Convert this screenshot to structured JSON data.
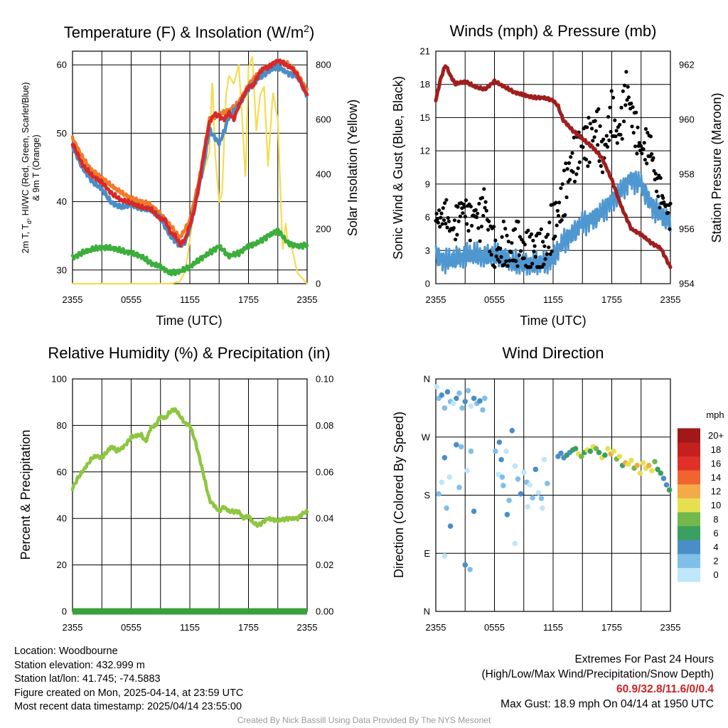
{
  "colors": {
    "temp_red": "#d7282a",
    "dew_green": "#3cae3c",
    "hiwc_scarlet": "#e03020",
    "wc_blue": "#4a8ec8",
    "t9m_orange": "#f07a28",
    "solar_yellow": "#f5dc50",
    "wind_blue": "#4f97d0",
    "gust_black": "#000000",
    "pressure_maroon": "#a01e1e",
    "rh_green": "#8dc63f",
    "precip_green": "#3aa03a"
  },
  "footer": {
    "location": "Location: Woodbourne",
    "elevation": "Station elevation: 432.999 m",
    "latlon": "Station lat/lon: 41.745; -74.5883",
    "created": "Figure created on Mon, 2025-04-14, at 23:59 UTC",
    "recent": "Most recent data timestamp: 2025/04/14 23:55:00",
    "extremes_title": "Extremes For Past 24 Hours",
    "extremes_sub": "(High/Low/Max Wind/Precipitation/Snow Depth)",
    "extremes_vals": "60.9/32.8/11.6/0/0.4",
    "max_gust": "Max Gust: 18.9 mph On 04/14 at 1950 UTC",
    "credit": "Created By Nick Bassill Using Data Provided By The NYS Mesonet"
  },
  "chart_data": [
    {
      "type": "line",
      "title": "Temperature (F) & Insolation (W/m²)",
      "xlabel": "Time (UTC)",
      "ylabel_lines": [
        "2m T, Td, HI/WC (Red, Green, Scarlet/Blue)",
        "& 9m T (Orange)"
      ],
      "y2label": "Solar Insolation (Yellow)",
      "xticks": [
        "2355",
        "0555",
        "1155",
        "1755",
        "2355"
      ],
      "xlim": [
        0,
        24
      ],
      "ylim": [
        28,
        62
      ],
      "yticks": [
        30,
        40,
        50,
        60
      ],
      "y2lim": [
        0,
        850
      ],
      "y2ticks": [
        0,
        200,
        400,
        600,
        800
      ],
      "series": [
        {
          "name": "2m T",
          "color": "#d7282a",
          "x": [
            0,
            1,
            2,
            3,
            4,
            5,
            6,
            7,
            8,
            9,
            9.5,
            10,
            10.5,
            11,
            11.5,
            12,
            12.5,
            13,
            13.5,
            14,
            14.5,
            15,
            15.5,
            16,
            16.5,
            17,
            17.5,
            18,
            18.5,
            19,
            19.5,
            20,
            20.5,
            21,
            21.5,
            22,
            22.5,
            23,
            23.5,
            24
          ],
          "values": [
            48.5,
            45.5,
            43.8,
            42.8,
            41.2,
            40.2,
            39.8,
            39.2,
            38.9,
            37.5,
            37.3,
            35.5,
            35.0,
            33.7,
            34.4,
            36.5,
            39.0,
            43.0,
            47.5,
            51.5,
            52.8,
            52.5,
            52.0,
            53.0,
            52.0,
            54.0,
            55.5,
            56.8,
            57.0,
            58.5,
            59.5,
            59.6,
            60.2,
            60.6,
            60.4,
            59.8,
            59.5,
            58.5,
            57.0,
            55.5
          ]
        },
        {
          "name": "9m T",
          "color": "#f07a28",
          "x": [
            0,
            1,
            2,
            3,
            4,
            5,
            6,
            7,
            8,
            9,
            10,
            11,
            12,
            13,
            14,
            15,
            16,
            17,
            18,
            19,
            20,
            21,
            22,
            23,
            24
          ],
          "values": [
            49.3,
            46.5,
            44.5,
            43.5,
            42.3,
            41.3,
            40.5,
            40.0,
            39.5,
            38.2,
            36.5,
            34.7,
            37.2,
            43.5,
            52.0,
            52.8,
            53.3,
            54.5,
            57.0,
            58.8,
            59.8,
            60.5,
            60.2,
            58.8,
            56.2
          ]
        },
        {
          "name": "WC",
          "color": "#4a8ec8",
          "x": [
            0,
            1,
            2,
            3,
            4,
            5,
            6,
            7,
            8,
            9,
            10,
            11,
            11.5,
            12,
            13,
            13.5,
            14,
            15,
            15.5,
            16,
            17,
            18,
            19,
            20,
            21,
            22,
            23,
            23.5,
            24
          ],
          "values": [
            48.0,
            45.0,
            43.0,
            41.8,
            39.8,
            39.2,
            39.5,
            39.0,
            38.8,
            37.5,
            35.0,
            33.5,
            34.0,
            36.0,
            42.5,
            46.0,
            50.5,
            48.5,
            50.2,
            52.5,
            54.0,
            56.5,
            58.0,
            59.0,
            59.8,
            58.8,
            58.3,
            57.0,
            55.5
          ]
        },
        {
          "name": "Td",
          "color": "#3cae3c",
          "x": [
            0,
            1,
            2,
            3,
            4,
            5,
            6,
            7,
            8,
            9,
            10,
            11,
            12,
            13,
            14,
            15,
            16,
            17,
            18,
            19,
            20,
            21,
            22,
            23,
            24
          ],
          "values": [
            31.8,
            32.5,
            33.0,
            33.3,
            33.2,
            32.8,
            32.5,
            32.0,
            31.0,
            30.5,
            29.5,
            29.8,
            30.5,
            31.5,
            32.5,
            33.5,
            32.0,
            32.5,
            33.5,
            34.0,
            35.0,
            35.8,
            34.0,
            33.5,
            33.7
          ]
        },
        {
          "name": "Solar",
          "color": "#f5dc50",
          "axis": "y2",
          "x": [
            0,
            8,
            10,
            11,
            11.3,
            11.6,
            12,
            12.5,
            13,
            13.5,
            14,
            14.3,
            14.6,
            15,
            15.3,
            15.7,
            16,
            16.5,
            17,
            17.3,
            17.7,
            18,
            18.4,
            18.8,
            19.2,
            19.6,
            20,
            20.5,
            21,
            21.5,
            21.8,
            22,
            22.5,
            23,
            24
          ],
          "values": [
            0,
            0,
            0,
            8,
            30,
            60,
            160,
            280,
            360,
            420,
            480,
            750,
            470,
            300,
            330,
            690,
            760,
            730,
            800,
            640,
            380,
            790,
            830,
            560,
            690,
            720,
            430,
            700,
            600,
            120,
            220,
            160,
            120,
            40,
            0
          ]
        }
      ]
    },
    {
      "type": "line",
      "title": "Winds (mph) & Pressure (mb)",
      "xlabel": "Time (UTC)",
      "ylabel": "Sonic Wind & Gust (Blue, Black)",
      "y2label": "Station Pressure (Maroon)",
      "xticks": [
        "2355",
        "0555",
        "1155",
        "1755",
        "2355"
      ],
      "xlim": [
        0,
        24
      ],
      "ylim": [
        0,
        21
      ],
      "yticks": [
        0,
        3,
        6,
        9,
        12,
        15,
        18,
        21
      ],
      "y2lim": [
        954,
        962.5
      ],
      "y2ticks": [
        954,
        956,
        958,
        960,
        962
      ],
      "series": [
        {
          "name": "Sonic Wind",
          "color": "#4f97d0",
          "x": [
            0,
            1,
            2,
            3,
            4,
            5,
            6,
            7,
            8,
            9,
            10,
            11,
            12,
            13,
            14,
            15,
            16,
            17,
            18,
            19,
            20,
            21,
            22,
            23,
            24
          ],
          "values": [
            2.5,
            2.0,
            2.2,
            2.5,
            2.6,
            2.4,
            2.6,
            2.3,
            1.8,
            1.8,
            1.7,
            1.9,
            2.2,
            3.8,
            4.5,
            5.5,
            5.8,
            6.5,
            7.5,
            8.5,
            9.5,
            9.0,
            7.2,
            6.2,
            5.5
          ]
        },
        {
          "name": "Gust",
          "color": "#000000",
          "marker": "dot",
          "x": [
            0,
            0.5,
            1,
            1.5,
            2,
            2.5,
            3,
            3.5,
            4,
            4.5,
            5,
            5.5,
            6,
            6.5,
            7,
            7.5,
            8,
            8.5,
            9,
            9.5,
            10,
            10.5,
            11,
            11.5,
            12,
            12.5,
            13,
            13.5,
            14,
            14.5,
            15,
            15.5,
            16,
            16.5,
            17,
            17.5,
            18,
            18.5,
            19,
            19.5,
            20,
            20.5,
            21,
            21.5,
            22,
            22.5,
            23,
            23.5,
            24
          ],
          "values": [
            6.0,
            5.8,
            6.6,
            4.8,
            5.2,
            6.8,
            6.8,
            5.5,
            6.5,
            5.6,
            7.8,
            4.2,
            3.1,
            2.5,
            3.7,
            2.6,
            3.5,
            3.8,
            2.9,
            2.7,
            3.2,
            3.0,
            2.4,
            3.9,
            5.5,
            6.3,
            7.6,
            9.7,
            11.2,
            11.8,
            13.0,
            12.5,
            13.5,
            14.6,
            11.3,
            13.0,
            15.7,
            13.2,
            14.5,
            18.0,
            15.5,
            13.6,
            12.0,
            12.4,
            12.5,
            9.2,
            8.2,
            7.0,
            6.0
          ]
        },
        {
          "name": "Pressure",
          "color": "#a01e1e",
          "axis": "y2",
          "x": [
            0,
            0.5,
            1,
            1.5,
            2,
            3,
            4,
            5,
            6,
            7,
            8,
            9,
            10,
            11,
            12,
            12.5,
            13,
            14,
            15,
            16,
            17,
            18,
            19,
            20,
            21,
            22,
            23,
            24
          ],
          "values": [
            960.7,
            961.5,
            962.0,
            961.6,
            961.3,
            961.4,
            961.2,
            961.1,
            961.4,
            961.2,
            961.0,
            960.9,
            960.8,
            960.8,
            960.7,
            960.5,
            960.0,
            959.6,
            959.3,
            959.0,
            958.6,
            957.8,
            956.8,
            956.0,
            955.8,
            955.5,
            955.3,
            954.6
          ]
        }
      ]
    },
    {
      "type": "line",
      "title": "Relative Humidity (%) & Precipitation (in)",
      "ylabel": "Percent & Precipitation",
      "xticks": [
        "2355",
        "0555",
        "1155",
        "1755",
        "2355"
      ],
      "xlim": [
        0,
        24
      ],
      "ylim": [
        0,
        100
      ],
      "yticks": [
        0,
        20,
        40,
        60,
        80,
        100
      ],
      "y2lim": [
        0,
        0.1
      ],
      "y2ticks": [
        "0.00",
        "0.02",
        "0.04",
        "0.06",
        "0.08",
        "0.10"
      ],
      "series": [
        {
          "name": "RH",
          "color": "#8dc63f",
          "x": [
            0,
            0.5,
            1,
            1.5,
            2,
            2.5,
            3,
            4,
            4.5,
            5,
            5.5,
            6,
            7,
            7.5,
            8,
            8.5,
            9,
            9.5,
            10,
            10.5,
            11,
            11.5,
            12,
            12.5,
            13,
            13.5,
            14,
            15,
            15.5,
            16,
            17,
            17.5,
            18,
            18.5,
            19,
            20,
            21,
            22,
            23,
            23.5,
            24
          ],
          "values": [
            53,
            57,
            60,
            63,
            66,
            67,
            66,
            71,
            69,
            70,
            72,
            75,
            76,
            73,
            79,
            80,
            84,
            83,
            86,
            87,
            84,
            81,
            80,
            74,
            66,
            57,
            48,
            43,
            45,
            43,
            43,
            40,
            41,
            38,
            37,
            40,
            39,
            40,
            40,
            42,
            43
          ]
        },
        {
          "name": "Precipitation",
          "color": "#3aa03a",
          "axis": "y2",
          "x": [
            0,
            24
          ],
          "values": [
            0,
            0
          ]
        }
      ]
    },
    {
      "type": "scatter",
      "title": "Wind Direction",
      "ylabel": "Direction (Colored By Speed)",
      "xticks": [
        "2355",
        "0555",
        "1155",
        "1755",
        "2355"
      ],
      "yticks": [
        "N",
        "E",
        "S",
        "W",
        "N"
      ],
      "xlim": [
        0,
        24
      ],
      "ylim": [
        0,
        360
      ],
      "legend_title": "mph",
      "legend_labels": [
        "0",
        "2",
        "4",
        "6",
        "8",
        "10",
        "12",
        "14",
        "16",
        "18",
        "20+"
      ],
      "legend_colors": [
        "#bfe6fa",
        "#80bfe8",
        "#4a8ec8",
        "#3aa060",
        "#72b84a",
        "#e6e050",
        "#f5aa48",
        "#f06430",
        "#e03028",
        "#c4201e",
        "#a01818"
      ],
      "points": {
        "x": [
          0.1,
          0.3,
          0.6,
          0.9,
          1.2,
          1.5,
          1.8,
          2.1,
          2.4,
          2.7,
          3.0,
          3.3,
          3.6,
          3.9,
          4.2,
          4.5,
          4.8,
          5.0,
          0.3,
          0.6,
          0.9,
          1.1,
          1.4,
          2.1,
          2.6,
          3.2,
          3.6,
          3.9,
          0.9,
          1.5,
          2.4,
          3.0,
          3.5,
          6.1,
          6.4,
          6.7,
          6.9,
          7.2,
          7.5,
          7.8,
          8.1,
          8.4,
          8.7,
          9.0,
          9.3,
          9.6,
          9.9,
          10.2,
          10.5,
          10.8,
          11.1,
          11.4,
          6.5,
          6.8,
          7.3,
          8.1,
          9.4,
          10.9,
          12.5,
          12.8,
          13.1,
          13.4,
          13.7,
          14.0,
          14.3,
          14.6,
          14.9,
          15.2,
          15.5,
          15.8,
          16.1,
          16.4,
          16.7,
          17.0,
          17.3,
          17.6,
          17.9,
          18.2,
          18.5,
          18.8,
          19.1,
          19.4,
          19.7,
          20.0,
          20.3,
          20.6,
          20.9,
          21.2,
          21.5,
          21.8,
          22.1,
          22.4,
          22.7,
          23.0,
          23.3,
          23.6,
          23.9
        ],
        "y": [
          348,
          330,
          335,
          315,
          340,
          325,
          322,
          330,
          338,
          315,
          325,
          342,
          318,
          330,
          322,
          326,
          312,
          330,
          182,
          200,
          238,
          160,
          208,
          258,
          255,
          218,
          248,
          155,
          86,
          132,
          192,
          72,
          65,
          248,
          212,
          235,
          195,
          248,
          172,
          280,
          225,
          205,
          182,
          215,
          200,
          196,
          176,
          220,
          184,
          175,
          235,
          198,
          262,
          208,
          150,
          105,
          162,
          160,
          240,
          245,
          238,
          242,
          246,
          250,
          252,
          244,
          240,
          246,
          250,
          248,
          255,
          252,
          246,
          238,
          242,
          252,
          244,
          248,
          236,
          240,
          226,
          230,
          228,
          234,
          222,
          226,
          214,
          230,
          222,
          226,
          218,
          232,
          220,
          214,
          206,
          196,
          188
        ],
        "speed": [
          1,
          2,
          3,
          2,
          3,
          2,
          1,
          3,
          2,
          2,
          3,
          2,
          1,
          3,
          2,
          3,
          2,
          2,
          2,
          1,
          3,
          2,
          1,
          3,
          2,
          1,
          2,
          3,
          1,
          3,
          2,
          3,
          2,
          2,
          1,
          3,
          2,
          1,
          2,
          3,
          1,
          2,
          3,
          1,
          2,
          1,
          2,
          3,
          1,
          2,
          1,
          2,
          3,
          2,
          3,
          1,
          1,
          1,
          3,
          4,
          4,
          5,
          4,
          6,
          5,
          8,
          7,
          6,
          8,
          5,
          9,
          7,
          6,
          8,
          5,
          9,
          10,
          8,
          7,
          9,
          6,
          10,
          8,
          9,
          7,
          10,
          9,
          8,
          9,
          10,
          8,
          7,
          6,
          5,
          4,
          4,
          5
        ]
      }
    }
  ]
}
